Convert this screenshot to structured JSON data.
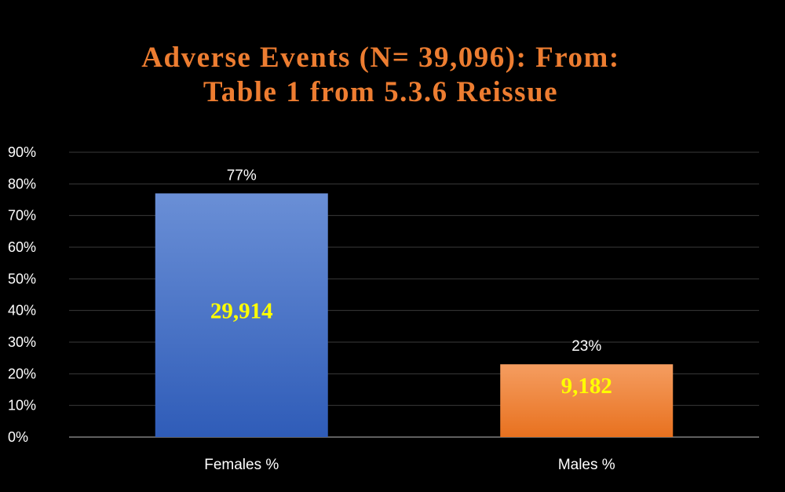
{
  "colors": {
    "background": "#000000",
    "title": "#ED7D31",
    "text": "#FFFFFF",
    "grid": "#3A3A3A",
    "inner_label": "#FFFF00"
  },
  "chart_data": {
    "type": "bar",
    "title_lines": [
      "Adverse Events (N= 39,096): From:",
      "Table 1 from 5.3.6 Reissue"
    ],
    "categories": [
      "Females %",
      "Males %"
    ],
    "values": [
      77,
      23
    ],
    "data_labels": [
      "77%",
      "23%"
    ],
    "inner_labels": [
      "29,914",
      "9,182"
    ],
    "bar_colors": [
      "#4472C4",
      "#ED7D31"
    ],
    "ylim": [
      0,
      90
    ],
    "yticks": [
      0,
      10,
      20,
      30,
      40,
      50,
      60,
      70,
      80,
      90
    ],
    "ytick_labels": [
      "0%",
      "10%",
      "20%",
      "30%",
      "40%",
      "50%",
      "60%",
      "70%",
      "80%",
      "90%"
    ],
    "grid": true,
    "legend": "none"
  }
}
